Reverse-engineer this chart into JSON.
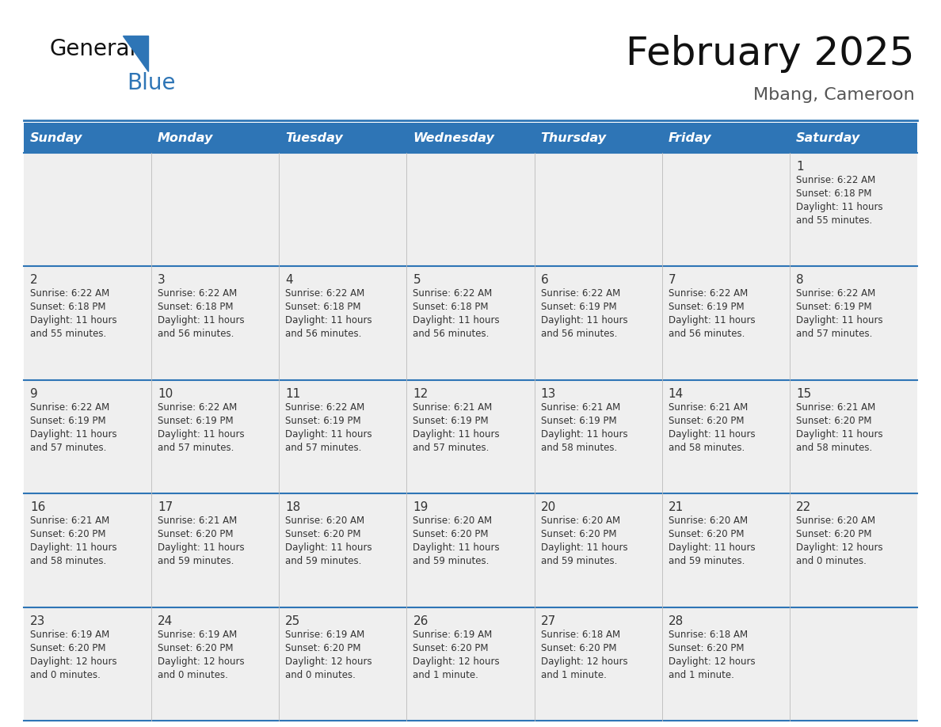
{
  "title": "February 2025",
  "subtitle": "Mbang, Cameroon",
  "header_bg": "#2E75B6",
  "header_text_color": "#FFFFFF",
  "cell_bg": "#EFEFEF",
  "border_color": "#2E75B6",
  "text_color": "#333333",
  "day_num_color": "#333333",
  "days_of_week": [
    "Sunday",
    "Monday",
    "Tuesday",
    "Wednesday",
    "Thursday",
    "Friday",
    "Saturday"
  ],
  "logo_color1": "#111111",
  "logo_color2": "#2E75B6",
  "calendar_data": [
    [
      {
        "day": "",
        "lines": []
      },
      {
        "day": "",
        "lines": []
      },
      {
        "day": "",
        "lines": []
      },
      {
        "day": "",
        "lines": []
      },
      {
        "day": "",
        "lines": []
      },
      {
        "day": "",
        "lines": []
      },
      {
        "day": "1",
        "lines": [
          "Sunrise: 6:22 AM",
          "Sunset: 6:18 PM",
          "Daylight: 11 hours",
          "and 55 minutes."
        ]
      }
    ],
    [
      {
        "day": "2",
        "lines": [
          "Sunrise: 6:22 AM",
          "Sunset: 6:18 PM",
          "Daylight: 11 hours",
          "and 55 minutes."
        ]
      },
      {
        "day": "3",
        "lines": [
          "Sunrise: 6:22 AM",
          "Sunset: 6:18 PM",
          "Daylight: 11 hours",
          "and 56 minutes."
        ]
      },
      {
        "day": "4",
        "lines": [
          "Sunrise: 6:22 AM",
          "Sunset: 6:18 PM",
          "Daylight: 11 hours",
          "and 56 minutes."
        ]
      },
      {
        "day": "5",
        "lines": [
          "Sunrise: 6:22 AM",
          "Sunset: 6:18 PM",
          "Daylight: 11 hours",
          "and 56 minutes."
        ]
      },
      {
        "day": "6",
        "lines": [
          "Sunrise: 6:22 AM",
          "Sunset: 6:19 PM",
          "Daylight: 11 hours",
          "and 56 minutes."
        ]
      },
      {
        "day": "7",
        "lines": [
          "Sunrise: 6:22 AM",
          "Sunset: 6:19 PM",
          "Daylight: 11 hours",
          "and 56 minutes."
        ]
      },
      {
        "day": "8",
        "lines": [
          "Sunrise: 6:22 AM",
          "Sunset: 6:19 PM",
          "Daylight: 11 hours",
          "and 57 minutes."
        ]
      }
    ],
    [
      {
        "day": "9",
        "lines": [
          "Sunrise: 6:22 AM",
          "Sunset: 6:19 PM",
          "Daylight: 11 hours",
          "and 57 minutes."
        ]
      },
      {
        "day": "10",
        "lines": [
          "Sunrise: 6:22 AM",
          "Sunset: 6:19 PM",
          "Daylight: 11 hours",
          "and 57 minutes."
        ]
      },
      {
        "day": "11",
        "lines": [
          "Sunrise: 6:22 AM",
          "Sunset: 6:19 PM",
          "Daylight: 11 hours",
          "and 57 minutes."
        ]
      },
      {
        "day": "12",
        "lines": [
          "Sunrise: 6:21 AM",
          "Sunset: 6:19 PM",
          "Daylight: 11 hours",
          "and 57 minutes."
        ]
      },
      {
        "day": "13",
        "lines": [
          "Sunrise: 6:21 AM",
          "Sunset: 6:19 PM",
          "Daylight: 11 hours",
          "and 58 minutes."
        ]
      },
      {
        "day": "14",
        "lines": [
          "Sunrise: 6:21 AM",
          "Sunset: 6:20 PM",
          "Daylight: 11 hours",
          "and 58 minutes."
        ]
      },
      {
        "day": "15",
        "lines": [
          "Sunrise: 6:21 AM",
          "Sunset: 6:20 PM",
          "Daylight: 11 hours",
          "and 58 minutes."
        ]
      }
    ],
    [
      {
        "day": "16",
        "lines": [
          "Sunrise: 6:21 AM",
          "Sunset: 6:20 PM",
          "Daylight: 11 hours",
          "and 58 minutes."
        ]
      },
      {
        "day": "17",
        "lines": [
          "Sunrise: 6:21 AM",
          "Sunset: 6:20 PM",
          "Daylight: 11 hours",
          "and 59 minutes."
        ]
      },
      {
        "day": "18",
        "lines": [
          "Sunrise: 6:20 AM",
          "Sunset: 6:20 PM",
          "Daylight: 11 hours",
          "and 59 minutes."
        ]
      },
      {
        "day": "19",
        "lines": [
          "Sunrise: 6:20 AM",
          "Sunset: 6:20 PM",
          "Daylight: 11 hours",
          "and 59 minutes."
        ]
      },
      {
        "day": "20",
        "lines": [
          "Sunrise: 6:20 AM",
          "Sunset: 6:20 PM",
          "Daylight: 11 hours",
          "and 59 minutes."
        ]
      },
      {
        "day": "21",
        "lines": [
          "Sunrise: 6:20 AM",
          "Sunset: 6:20 PM",
          "Daylight: 11 hours",
          "and 59 minutes."
        ]
      },
      {
        "day": "22",
        "lines": [
          "Sunrise: 6:20 AM",
          "Sunset: 6:20 PM",
          "Daylight: 12 hours",
          "and 0 minutes."
        ]
      }
    ],
    [
      {
        "day": "23",
        "lines": [
          "Sunrise: 6:19 AM",
          "Sunset: 6:20 PM",
          "Daylight: 12 hours",
          "and 0 minutes."
        ]
      },
      {
        "day": "24",
        "lines": [
          "Sunrise: 6:19 AM",
          "Sunset: 6:20 PM",
          "Daylight: 12 hours",
          "and 0 minutes."
        ]
      },
      {
        "day": "25",
        "lines": [
          "Sunrise: 6:19 AM",
          "Sunset: 6:20 PM",
          "Daylight: 12 hours",
          "and 0 minutes."
        ]
      },
      {
        "day": "26",
        "lines": [
          "Sunrise: 6:19 AM",
          "Sunset: 6:20 PM",
          "Daylight: 12 hours",
          "and 1 minute."
        ]
      },
      {
        "day": "27",
        "lines": [
          "Sunrise: 6:18 AM",
          "Sunset: 6:20 PM",
          "Daylight: 12 hours",
          "and 1 minute."
        ]
      },
      {
        "day": "28",
        "lines": [
          "Sunrise: 6:18 AM",
          "Sunset: 6:20 PM",
          "Daylight: 12 hours",
          "and 1 minute."
        ]
      },
      {
        "day": "",
        "lines": []
      }
    ]
  ]
}
